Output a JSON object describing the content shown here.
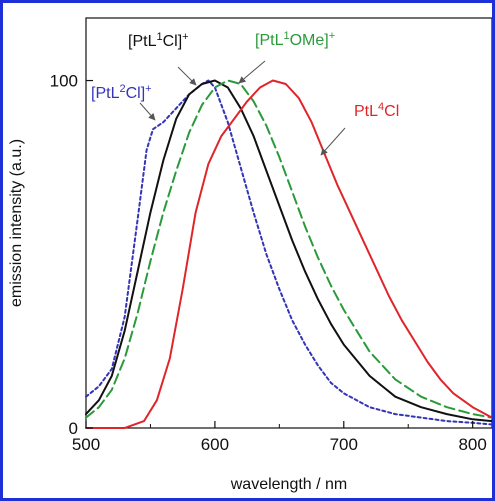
{
  "chart_data": {
    "type": "line",
    "title": "",
    "xlabel": "wavelength / nm",
    "ylabel": "emission intensity (a.u.)",
    "xlim": [
      500,
      815
    ],
    "ylim": [
      0,
      118
    ],
    "x_ticks": [
      500,
      600,
      700,
      800
    ],
    "x_tick_labels": [
      "500",
      "600",
      "700",
      "800"
    ],
    "y_ticks": [
      0,
      100
    ],
    "y_tick_labels": [
      "0",
      "100"
    ],
    "grid": false,
    "legend": "none",
    "series": [
      {
        "name": "[PtL2Cl]+",
        "label": {
          "base": "[PtL",
          "sup1": "2",
          "mid": "Cl]",
          "sup2": "+"
        },
        "color": "#3434b8",
        "style": "dotted",
        "points": [
          [
            500,
            9
          ],
          [
            510,
            12
          ],
          [
            520,
            17
          ],
          [
            530,
            32
          ],
          [
            540,
            60
          ],
          [
            547,
            80
          ],
          [
            552,
            86
          ],
          [
            560,
            88
          ],
          [
            570,
            92
          ],
          [
            580,
            96
          ],
          [
            590,
            99
          ],
          [
            595,
            100
          ],
          [
            600,
            98
          ],
          [
            610,
            88
          ],
          [
            620,
            75
          ],
          [
            630,
            62
          ],
          [
            640,
            50
          ],
          [
            650,
            40
          ],
          [
            660,
            31
          ],
          [
            670,
            24
          ],
          [
            680,
            18
          ],
          [
            690,
            13
          ],
          [
            700,
            10
          ],
          [
            720,
            6
          ],
          [
            740,
            4
          ],
          [
            760,
            3
          ],
          [
            780,
            2
          ],
          [
            800,
            1.5
          ],
          [
            815,
            1
          ]
        ]
      },
      {
        "name": "[PtL1Cl]+",
        "label": {
          "base": "[PtL",
          "sup1": "1",
          "mid": "Cl]",
          "sup2": "+"
        },
        "color": "#111111",
        "style": "solid",
        "points": [
          [
            500,
            4
          ],
          [
            510,
            8
          ],
          [
            520,
            15
          ],
          [
            530,
            28
          ],
          [
            540,
            45
          ],
          [
            550,
            62
          ],
          [
            560,
            77
          ],
          [
            570,
            89
          ],
          [
            580,
            96
          ],
          [
            590,
            99
          ],
          [
            600,
            100
          ],
          [
            610,
            98
          ],
          [
            620,
            92
          ],
          [
            630,
            84
          ],
          [
            640,
            74
          ],
          [
            650,
            64
          ],
          [
            660,
            54
          ],
          [
            670,
            45
          ],
          [
            680,
            37
          ],
          [
            690,
            30
          ],
          [
            700,
            24
          ],
          [
            720,
            15
          ],
          [
            740,
            9
          ],
          [
            760,
            6
          ],
          [
            780,
            4
          ],
          [
            800,
            2.5
          ],
          [
            815,
            2
          ]
        ]
      },
      {
        "name": "[PtL1OMe]+",
        "label": {
          "base": "[PtL",
          "sup1": "1",
          "mid": "OMe]",
          "sup2": "+"
        },
        "color": "#2a9a3a",
        "style": "dashed",
        "points": [
          [
            500,
            3
          ],
          [
            510,
            6
          ],
          [
            520,
            11
          ],
          [
            530,
            20
          ],
          [
            540,
            33
          ],
          [
            550,
            48
          ],
          [
            560,
            62
          ],
          [
            570,
            74
          ],
          [
            580,
            85
          ],
          [
            590,
            93
          ],
          [
            600,
            98
          ],
          [
            610,
            100
          ],
          [
            620,
            99
          ],
          [
            630,
            94
          ],
          [
            640,
            87
          ],
          [
            650,
            78
          ],
          [
            660,
            68
          ],
          [
            670,
            58
          ],
          [
            680,
            49
          ],
          [
            690,
            41
          ],
          [
            700,
            34
          ],
          [
            720,
            22
          ],
          [
            740,
            14
          ],
          [
            760,
            9
          ],
          [
            780,
            6
          ],
          [
            800,
            4
          ],
          [
            815,
            3
          ]
        ]
      },
      {
        "name": "PtL4Cl",
        "label": {
          "base": "PtL",
          "sup1": "4",
          "mid": "Cl",
          "sup2": ""
        },
        "color": "#e0252a",
        "style": "solid",
        "points": [
          [
            500,
            0
          ],
          [
            530,
            0
          ],
          [
            545,
            2
          ],
          [
            555,
            8
          ],
          [
            565,
            20
          ],
          [
            575,
            40
          ],
          [
            585,
            62
          ],
          [
            595,
            76
          ],
          [
            605,
            84
          ],
          [
            615,
            89
          ],
          [
            625,
            94
          ],
          [
            635,
            98
          ],
          [
            645,
            100
          ],
          [
            655,
            99
          ],
          [
            665,
            95
          ],
          [
            675,
            88
          ],
          [
            685,
            79
          ],
          [
            695,
            70
          ],
          [
            705,
            62
          ],
          [
            715,
            54
          ],
          [
            725,
            46
          ],
          [
            735,
            38
          ],
          [
            745,
            31
          ],
          [
            755,
            25
          ],
          [
            765,
            19
          ],
          [
            775,
            14
          ],
          [
            785,
            10
          ],
          [
            800,
            6
          ],
          [
            815,
            3
          ]
        ]
      }
    ]
  }
}
